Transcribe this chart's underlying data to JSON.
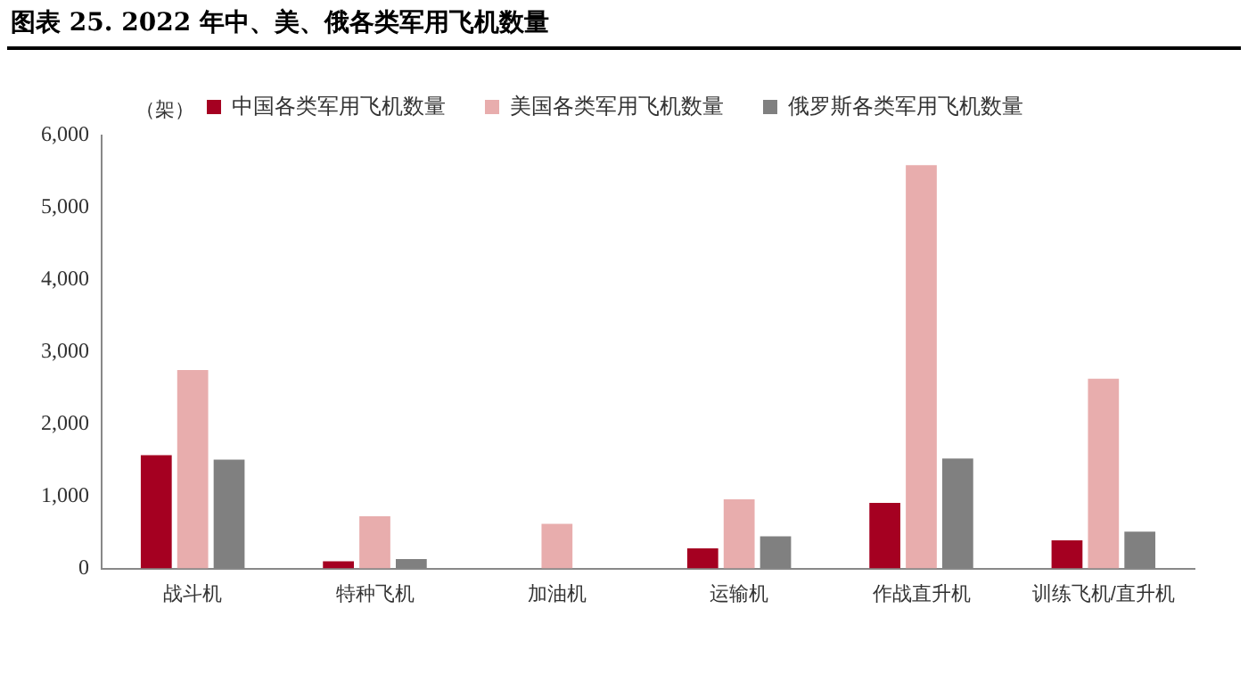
{
  "chart_data": {
    "type": "bar",
    "title": "图表 25. 2022 年中、美、俄各类军用飞机数量",
    "ylabel": "（架）",
    "categories": [
      "战斗机",
      "特种飞机",
      "加油机",
      "运输机",
      "作战直升机",
      "训练飞机/直升机"
    ],
    "series": [
      {
        "name": "中国各类军用飞机数量",
        "color": "#a50021",
        "values": [
          1570,
          100,
          0,
          280,
          910,
          390
        ]
      },
      {
        "name": "美国各类军用飞机数量",
        "color": "#e8adad",
        "values": [
          2750,
          725,
          620,
          960,
          5590,
          2630
        ]
      },
      {
        "name": "俄罗斯各类军用飞机数量",
        "color": "#808080",
        "values": [
          1510,
          130,
          0,
          445,
          1525,
          510
        ]
      }
    ],
    "ylim": [
      0,
      6000
    ],
    "yticks": [
      {
        "value": 0,
        "label": "0"
      },
      {
        "value": 1000,
        "label": "1,000"
      },
      {
        "value": 2000,
        "label": "2,000"
      },
      {
        "value": 3000,
        "label": "3,000"
      },
      {
        "value": 4000,
        "label": "4,000"
      },
      {
        "value": 5000,
        "label": "5,000"
      },
      {
        "value": 6000,
        "label": "6,000"
      }
    ],
    "grid": false,
    "legend": "top"
  }
}
